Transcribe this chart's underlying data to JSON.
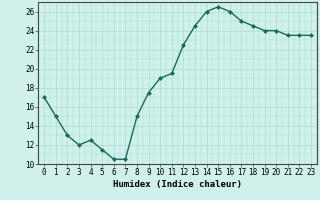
{
  "x": [
    0,
    1,
    2,
    3,
    4,
    5,
    6,
    7,
    8,
    9,
    10,
    11,
    12,
    13,
    14,
    15,
    16,
    17,
    18,
    19,
    20,
    21,
    22,
    23
  ],
  "y": [
    17.0,
    15.0,
    13.0,
    12.0,
    12.5,
    11.5,
    10.5,
    10.5,
    15.0,
    17.5,
    19.0,
    19.5,
    22.5,
    24.5,
    26.0,
    26.5,
    26.0,
    25.0,
    24.5,
    24.0,
    24.0,
    23.5,
    23.5,
    23.5
  ],
  "line_color": "#1a6b5a",
  "marker": "D",
  "marker_size": 2.0,
  "bg_color": "#cff0eb",
  "grid_color": "#a8ddd8",
  "xlabel": "Humidex (Indice chaleur)",
  "ylim": [
    10,
    27
  ],
  "yticks": [
    10,
    12,
    14,
    16,
    18,
    20,
    22,
    24,
    26
  ],
  "xticks": [
    0,
    1,
    2,
    3,
    4,
    5,
    6,
    7,
    8,
    9,
    10,
    11,
    12,
    13,
    14,
    15,
    16,
    17,
    18,
    19,
    20,
    21,
    22,
    23
  ],
  "xtick_labels": [
    "0",
    "1",
    "2",
    "3",
    "4",
    "5",
    "6",
    "7",
    "8",
    "9",
    "10",
    "11",
    "12",
    "13",
    "14",
    "15",
    "16",
    "17",
    "18",
    "19",
    "20",
    "21",
    "22",
    "23"
  ],
  "line_width": 1.0,
  "tick_fontsize": 5.5,
  "xlabel_fontsize": 6.5,
  "spine_color": "#444444"
}
